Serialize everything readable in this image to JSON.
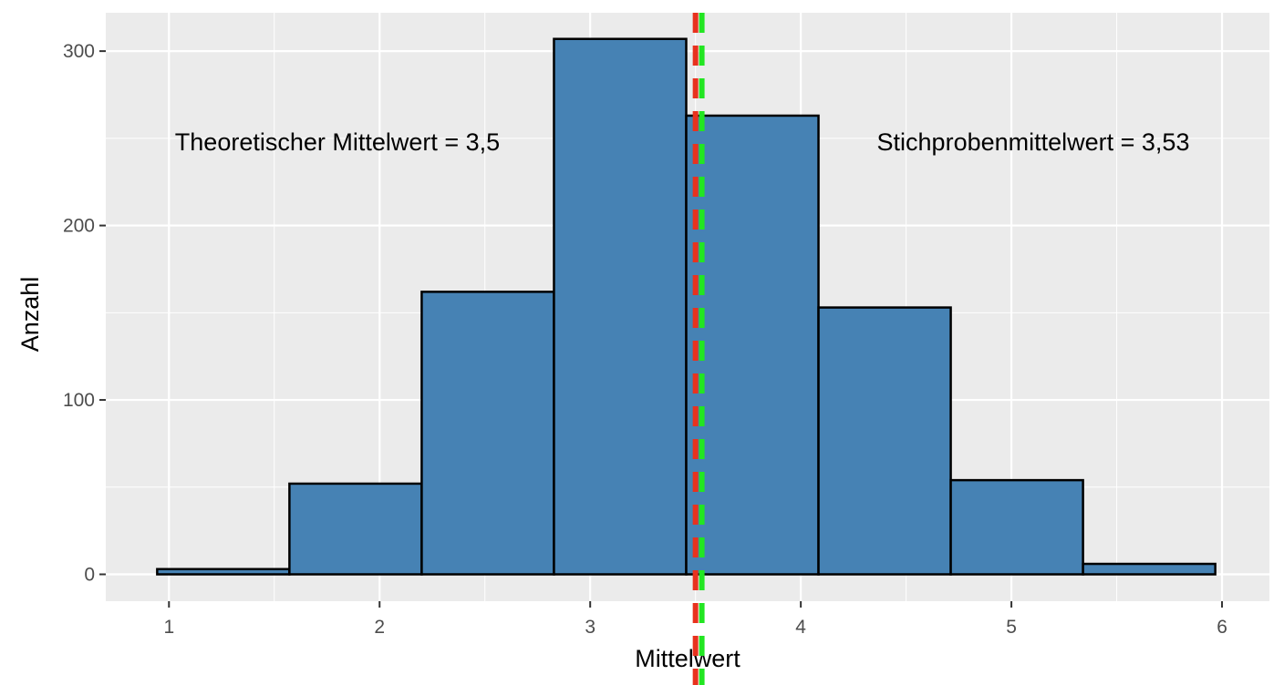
{
  "chart_data": {
    "type": "histogram",
    "x_label": "Mittelwert",
    "y_label": "Anzahl",
    "bins": [
      0.944,
      1.572,
      2.2,
      2.828,
      3.456,
      4.084,
      4.712,
      5.34,
      5.968
    ],
    "values": [
      3,
      52,
      162,
      307,
      263,
      153,
      54,
      6
    ],
    "color": "#4682b4",
    "xlim": [
      0.7,
      6.225
    ],
    "xticks": [
      1,
      2,
      3,
      4,
      5,
      6
    ],
    "ylim": [
      -15.4,
      322
    ],
    "yticks": [
      0,
      100,
      200,
      300
    ],
    "grid": true,
    "vlines": [
      {
        "value": 3.5,
        "color": "#e8321e"
      },
      {
        "value": 3.53,
        "color": "#22e622"
      }
    ],
    "annotations": [
      "Theoretischer Mittelwert = 3,5",
      "Stichprobenmittelwert = 3,53"
    ]
  }
}
